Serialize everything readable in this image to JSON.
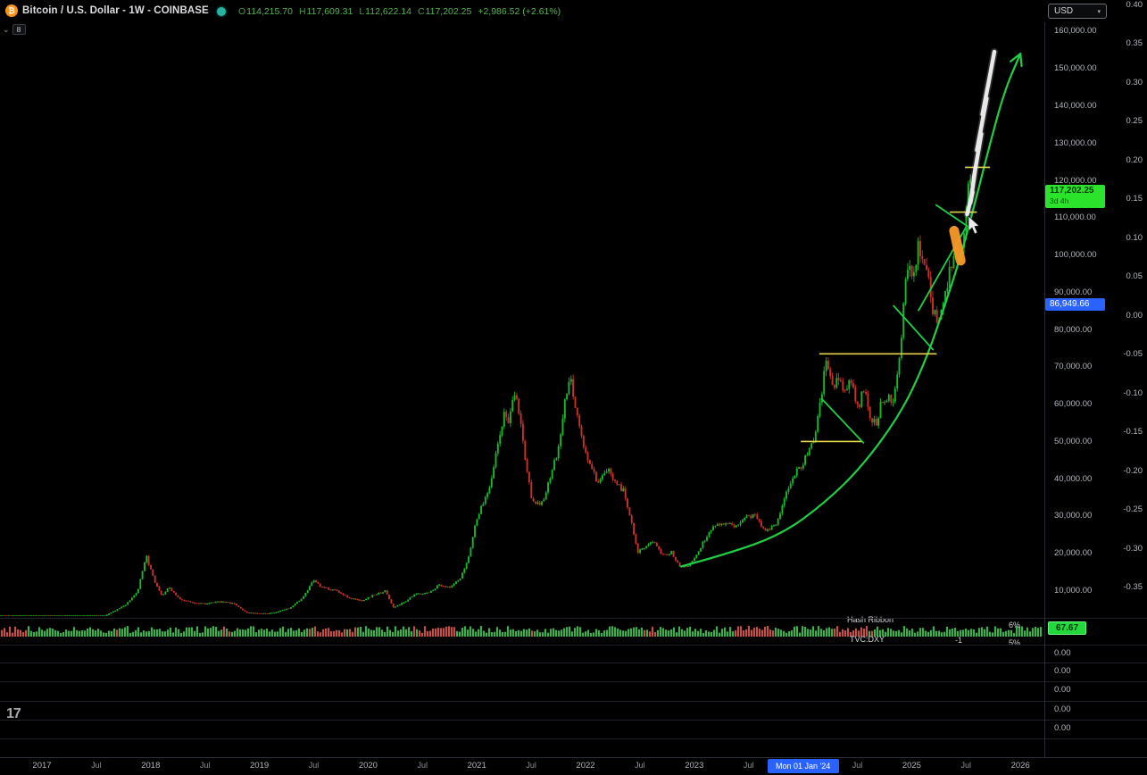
{
  "header": {
    "symbol_title": "Bitcoin / U.S. Dollar - 1W - COINBASE",
    "ohlc": {
      "o_label": "O",
      "o": "114,215.70",
      "h_label": "H",
      "h": "117,609.31",
      "l_label": "L",
      "l": "112,622.14",
      "c_label": "C",
      "c": "117,202.25",
      "change": "+2,986.52 (+2.61%)"
    },
    "drawings_count": "8"
  },
  "price_axis": {
    "currency_button": "USD",
    "ticks": [
      "160,000.00",
      "150,000.00",
      "140,000.00",
      "130,000.00",
      "120,000.00",
      "110,000.00",
      "100,000.00",
      "90,000.00",
      "80,000.00",
      "70,000.00",
      "60,000.00",
      "50,000.00",
      "40,000.00",
      "30,000.00",
      "20,000.00",
      "10,000.00"
    ],
    "last_price_badge": {
      "price": "117,202.25",
      "countdown": "3d 4h"
    },
    "alert_badge": "86,949.66"
  },
  "secondary_axis": {
    "ticks": [
      "0.40",
      "0.35",
      "0.30",
      "0.25",
      "0.20",
      "0.15",
      "0.10",
      "0.05",
      "0.00",
      "-0.05",
      "-0.10",
      "-0.15",
      "-0.20",
      "-0.25",
      "-0.30",
      "-0.35"
    ]
  },
  "indicators": {
    "hash_ribbon": {
      "label": "Hash Ribbon",
      "percent": "6%",
      "value_badge": "67.67"
    },
    "dxy": {
      "label": "TVC:DXY",
      "value": "-1",
      "percent": "5%"
    },
    "sub_pane_values": [
      "0.00",
      "0.00",
      "0.00",
      "0.00",
      "0.00"
    ]
  },
  "time_axis": {
    "items": [
      {
        "label": "2017",
        "year": 2017
      },
      {
        "label": "Jul",
        "year": 2017.5,
        "minor": true
      },
      {
        "label": "2018",
        "year": 2018
      },
      {
        "label": "Jul",
        "year": 2018.5,
        "minor": true
      },
      {
        "label": "2019",
        "year": 2019
      },
      {
        "label": "Jul",
        "year": 2019.5,
        "minor": true
      },
      {
        "label": "2020",
        "year": 2020
      },
      {
        "label": "Jul",
        "year": 2020.5,
        "minor": true
      },
      {
        "label": "2021",
        "year": 2021
      },
      {
        "label": "Jul",
        "year": 2021.5,
        "minor": true
      },
      {
        "label": "2022",
        "year": 2022
      },
      {
        "label": "Jul",
        "year": 2022.5,
        "minor": true
      },
      {
        "label": "2023",
        "year": 2023
      },
      {
        "label": "Jul",
        "year": 2023.5,
        "minor": true
      },
      {
        "label": "Jul",
        "year": 2024.5,
        "minor": true
      },
      {
        "label": "2025",
        "year": 2025
      },
      {
        "label": "Jul",
        "year": 2025.5,
        "minor": true
      },
      {
        "label": "2026",
        "year": 2026
      }
    ],
    "selected": {
      "label": "Mon 01 Jan '24",
      "year": 2024
    }
  },
  "logo": "17",
  "colors": {
    "up": "#17b82e",
    "down": "#c9322c",
    "annotation_green": "#1fcf45",
    "annotation_yellow": "#e3d44c",
    "annotation_orange": "#f79a28",
    "badge_green": "#2be32b",
    "badge_blue": "#2962ff",
    "hash_green": "#3fae4e",
    "hash_red": "#c2504a"
  },
  "chart_data": {
    "type": "candlestick",
    "title": "Bitcoin / U.S. Dollar",
    "symbol": "BTCUSD",
    "exchange": "COINBASE",
    "interval": "1W",
    "ohlc_current": {
      "open": 114215.7,
      "high": 117609.31,
      "low": 112622.14,
      "close": 117202.25,
      "change": 2986.52,
      "change_pct": 2.61
    },
    "price_axis_range": [
      2700,
      162400
    ],
    "time_axis_range": [
      2016.6,
      2026.2
    ],
    "weekly_close_anchors": [
      [
        2016.54,
        610
      ],
      [
        2016.75,
        660
      ],
      [
        2016.92,
        930
      ],
      [
        2017.08,
        1080
      ],
      [
        2017.25,
        1250
      ],
      [
        2017.42,
        2400
      ],
      [
        2017.54,
        2700
      ],
      [
        2017.65,
        4300
      ],
      [
        2017.77,
        6200
      ],
      [
        2017.88,
        9800
      ],
      [
        2017.96,
        19200
      ],
      [
        2018.04,
        12000
      ],
      [
        2018.1,
        8600
      ],
      [
        2018.17,
        10800
      ],
      [
        2018.27,
        7600
      ],
      [
        2018.4,
        6700
      ],
      [
        2018.52,
        6500
      ],
      [
        2018.65,
        7100
      ],
      [
        2018.77,
        6400
      ],
      [
        2018.88,
        4100
      ],
      [
        2019.0,
        3750
      ],
      [
        2019.12,
        3900
      ],
      [
        2019.27,
        5200
      ],
      [
        2019.4,
        8100
      ],
      [
        2019.5,
        12800
      ],
      [
        2019.58,
        10700
      ],
      [
        2019.71,
        10000
      ],
      [
        2019.83,
        7900
      ],
      [
        2019.94,
        7300
      ],
      [
        2020.06,
        8900
      ],
      [
        2020.16,
        9900
      ],
      [
        2020.23,
        5400
      ],
      [
        2020.33,
        6900
      ],
      [
        2020.44,
        9100
      ],
      [
        2020.56,
        9400
      ],
      [
        2020.65,
        11600
      ],
      [
        2020.75,
        10700
      ],
      [
        2020.85,
        13200
      ],
      [
        2020.92,
        18500
      ],
      [
        2021.0,
        29500
      ],
      [
        2021.06,
        33500
      ],
      [
        2021.12,
        38500
      ],
      [
        2021.19,
        48500
      ],
      [
        2021.25,
        57000
      ],
      [
        2021.3,
        55500
      ],
      [
        2021.35,
        63000
      ],
      [
        2021.4,
        56000
      ],
      [
        2021.44,
        46000
      ],
      [
        2021.5,
        35500
      ],
      [
        2021.56,
        33000
      ],
      [
        2021.62,
        34500
      ],
      [
        2021.69,
        42000
      ],
      [
        2021.75,
        47500
      ],
      [
        2021.81,
        60500
      ],
      [
        2021.86,
        66800
      ],
      [
        2021.92,
        57500
      ],
      [
        2021.98,
        48500
      ],
      [
        2022.06,
        42500
      ],
      [
        2022.12,
        38000
      ],
      [
        2022.19,
        42500
      ],
      [
        2022.27,
        40000
      ],
      [
        2022.35,
        36500
      ],
      [
        2022.42,
        29000
      ],
      [
        2022.48,
        20500
      ],
      [
        2022.56,
        21500
      ],
      [
        2022.63,
        23500
      ],
      [
        2022.71,
        19700
      ],
      [
        2022.79,
        20200
      ],
      [
        2022.87,
        16600
      ],
      [
        2022.96,
        16900
      ],
      [
        2023.04,
        20500
      ],
      [
        2023.1,
        24000
      ],
      [
        2023.19,
        27800
      ],
      [
        2023.27,
        28200
      ],
      [
        2023.37,
        26800
      ],
      [
        2023.46,
        29800
      ],
      [
        2023.56,
        30200
      ],
      [
        2023.65,
        26300
      ],
      [
        2023.75,
        27600
      ],
      [
        2023.83,
        34400
      ],
      [
        2023.92,
        41500
      ],
      [
        2024.0,
        44200
      ],
      [
        2024.06,
        47800
      ],
      [
        2024.12,
        52500
      ],
      [
        2024.17,
        62500
      ],
      [
        2024.21,
        71500
      ],
      [
        2024.27,
        64500
      ],
      [
        2024.33,
        66800
      ],
      [
        2024.38,
        63500
      ],
      [
        2024.44,
        66500
      ],
      [
        2024.5,
        58500
      ],
      [
        2024.56,
        63800
      ],
      [
        2024.62,
        56800
      ],
      [
        2024.67,
        54800
      ],
      [
        2024.73,
        61200
      ],
      [
        2024.79,
        62800
      ],
      [
        2024.83,
        60500
      ],
      [
        2024.87,
        69000
      ],
      [
        2024.9,
        76500
      ],
      [
        2024.94,
        91000
      ],
      [
        2024.98,
        97500
      ],
      [
        2025.02,
        94500
      ],
      [
        2025.06,
        104200
      ],
      [
        2025.1,
        97800
      ],
      [
        2025.15,
        96400
      ],
      [
        2025.19,
        84800
      ],
      [
        2025.23,
        82500
      ],
      [
        2025.29,
        87200
      ],
      [
        2025.35,
        95500
      ],
      [
        2025.4,
        103800
      ],
      [
        2025.44,
        97600
      ],
      [
        2025.48,
        106200
      ],
      [
        2025.52,
        119500
      ],
      [
        2025.56,
        117202
      ]
    ],
    "annotations": [
      {
        "name": "parabolic-support-curve",
        "type": "curve",
        "color": "#1fcf45",
        "width": 2.2,
        "arrow": true,
        "points": [
          [
            2022.88,
            16500
          ],
          [
            2023.3,
            19800
          ],
          [
            2023.8,
            25000
          ],
          [
            2024.2,
            33500
          ],
          [
            2024.55,
            43500
          ],
          [
            2024.9,
            57500
          ],
          [
            2025.12,
            71000
          ],
          [
            2025.3,
            86000
          ],
          [
            2025.46,
            100500
          ],
          [
            2025.6,
            116000
          ],
          [
            2025.73,
            131000
          ],
          [
            2025.86,
            144500
          ],
          [
            2026.0,
            154000
          ]
        ]
      },
      {
        "name": "resistance-50k",
        "type": "line",
        "color": "#e3d44c",
        "width": 1.6,
        "points": [
          [
            2023.98,
            50000
          ],
          [
            2024.55,
            50000
          ]
        ]
      },
      {
        "name": "resistance-73k",
        "type": "line",
        "color": "#e3d44c",
        "width": 1.6,
        "points": [
          [
            2024.15,
            73500
          ],
          [
            2025.23,
            73500
          ]
        ]
      },
      {
        "name": "resistance-111k",
        "type": "line",
        "color": "#e3d44c",
        "width": 1.6,
        "points": [
          [
            2025.35,
            111500
          ],
          [
            2025.6,
            111500
          ]
        ]
      },
      {
        "name": "resistance-123k",
        "type": "line",
        "color": "#e3d44c",
        "width": 1.6,
        "points": [
          [
            2025.49,
            123500
          ],
          [
            2025.72,
            123500
          ]
        ]
      },
      {
        "name": "trendline-2024-triangle",
        "type": "line",
        "color": "#1fcf45",
        "width": 1.8,
        "points": [
          [
            2024.17,
            61500
          ],
          [
            2024.56,
            49500
          ]
        ]
      },
      {
        "name": "trendline-2025-correction",
        "type": "line",
        "color": "#1fcf45",
        "width": 1.8,
        "points": [
          [
            2024.83,
            86500
          ],
          [
            2025.2,
            74500
          ]
        ]
      },
      {
        "name": "breakout-line-2025",
        "type": "line",
        "color": "#1fcf45",
        "width": 1.8,
        "points": [
          [
            2025.06,
            85000
          ],
          [
            2025.5,
            107500
          ]
        ]
      },
      {
        "name": "trendline-recent",
        "type": "line",
        "color": "#1fcf45",
        "width": 1.8,
        "points": [
          [
            2025.22,
            113500
          ],
          [
            2025.55,
            107000
          ]
        ]
      },
      {
        "name": "highlight-marker",
        "type": "marker",
        "color": "#f79a28",
        "width": 11,
        "points": [
          [
            2025.39,
            106500
          ],
          [
            2025.45,
            98500
          ]
        ]
      },
      {
        "name": "projected-path",
        "type": "freehand",
        "color": "#f2f2f2",
        "width": 4.5,
        "points": [
          [
            2025.51,
            110900
          ],
          [
            2025.56,
            116900
          ],
          [
            2025.54,
            114000
          ],
          [
            2025.59,
            124100
          ],
          [
            2025.57,
            120500
          ],
          [
            2025.64,
            132500
          ],
          [
            2025.6,
            128100
          ],
          [
            2025.69,
            142000
          ],
          [
            2025.65,
            137700
          ],
          [
            2025.73,
            149700
          ],
          [
            2025.7,
            145100
          ],
          [
            2025.76,
            154500
          ]
        ]
      }
    ]
  }
}
